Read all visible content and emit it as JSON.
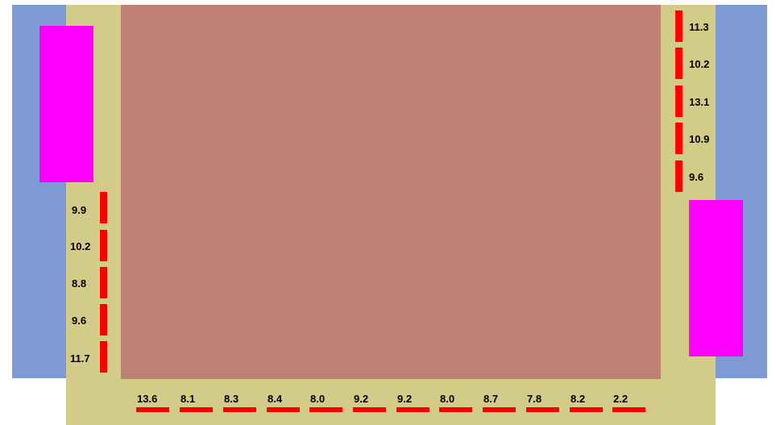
{
  "left_labels": [
    "9.9",
    "10.2",
    "8.8",
    "9.6",
    "11.7"
  ],
  "right_labels": [
    "11.3",
    "10.2",
    "13.1",
    "10.9",
    "9.6"
  ],
  "bottom_labels": [
    "13.6",
    "8.1",
    "8.3",
    "8.4",
    "8.0",
    "9.2",
    "9.2",
    "8.0",
    "8.7",
    "7.8",
    "8.2",
    "2.2"
  ],
  "colors": {
    "background": "#ffffff",
    "band": "#7e9ad4",
    "frame": "#d3cc88",
    "center": "#bf8076",
    "block": "#ff00ff",
    "marker": "#ff0000"
  }
}
